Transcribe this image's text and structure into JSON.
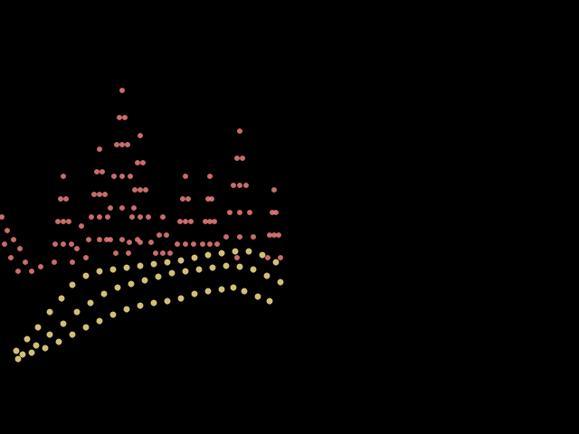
{
  "chart_data": {
    "type": "scatter",
    "xlim": [
      0,
      640
    ],
    "ylim": [
      0,
      480
    ],
    "grid": false,
    "tick_labels": false,
    "series": [
      {
        "color": "#ee7f7f",
        "x": [
          135,
          132,
          138,
          129,
          141,
          135,
          126,
          144,
          135,
          122,
          148,
          135,
          118,
          152,
          135,
          128,
          142,
          110,
          107,
          113,
          104,
          116,
          110,
          101,
          119,
          110,
          98,
          122,
          110,
          70,
          67,
          73,
          64,
          76,
          70,
          61,
          79,
          70,
          60,
          80,
          155,
          152,
          158,
          149,
          161,
          155,
          146,
          164,
          155,
          143,
          167,
          155,
          205,
          202,
          208,
          199,
          211,
          205,
          196,
          214,
          205,
          232,
          230,
          234,
          227,
          237,
          232,
          224,
          240,
          232,
          265,
          262,
          268,
          258,
          272,
          265,
          254,
          276,
          265,
          250,
          280,
          265,
          262,
          303,
          301,
          305,
          298,
          308,
          303,
          296,
          310,
          180,
          176,
          184,
          172,
          188,
          180,
          2,
          8,
          15,
          22,
          5,
          12,
          28,
          35,
          20,
          45,
          90,
          85,
          95
        ],
        "values": [
          380,
          350,
          350,
          320,
          320,
          320,
          285,
          285,
          285,
          250,
          250,
          250,
          215,
          215,
          215,
          200,
          200,
          315,
          290,
          290,
          265,
          265,
          265,
          240,
          240,
          240,
          215,
          215,
          215,
          285,
          260,
          260,
          235,
          235,
          235,
          210,
          210,
          210,
          190,
          190,
          330,
          300,
          300,
          270,
          270,
          270,
          240,
          240,
          240,
          212,
          212,
          212,
          285,
          260,
          260,
          235,
          235,
          235,
          210,
          210,
          210,
          285,
          260,
          260,
          235,
          235,
          235,
          210,
          210,
          210,
          335,
          305,
          305,
          275,
          275,
          275,
          245,
          245,
          245,
          218,
          218,
          218,
          195,
          270,
          245,
          245,
          220,
          220,
          220,
          195,
          195,
          240,
          220,
          220,
          200,
          200,
          200,
          240,
          225,
          215,
          205,
          210,
          195,
          190,
          180,
          180,
          185,
          230,
          205,
          195
        ]
      },
      {
        "color": "#f7e18c",
        "x": [
          18,
          30,
          42,
          55,
          68,
          80,
          95,
          110,
          125,
          140,
          155,
          170,
          185,
          200,
          215,
          230,
          245,
          260,
          275,
          290,
          305,
          25,
          40,
          55,
          70,
          85,
          100,
          115,
          130,
          145,
          160,
          175,
          190,
          205,
          220,
          235,
          250,
          265,
          280,
          295,
          310,
          20,
          35,
          50,
          65,
          80,
          95,
          110,
          125,
          140,
          155,
          170,
          185,
          200,
          215,
          230,
          245,
          258,
          270,
          285,
          298
        ],
        "values": [
          92,
          105,
          118,
          135,
          150,
          165,
          175,
          180,
          182,
          184,
          186,
          188,
          190,
          192,
          195,
          198,
          200,
          202,
          202,
          198,
          190,
          88,
          98,
          110,
          122,
          135,
          145,
          155,
          162,
          166,
          170,
          174,
          178,
          180,
          182,
          184,
          186,
          185,
          182,
          175,
          168,
          83,
          90,
          95,
          102,
          110,
          118,
          125,
          132,
          138,
          142,
          145,
          147,
          150,
          155,
          158,
          160,
          162,
          158,
          152,
          147
        ]
      }
    ]
  }
}
